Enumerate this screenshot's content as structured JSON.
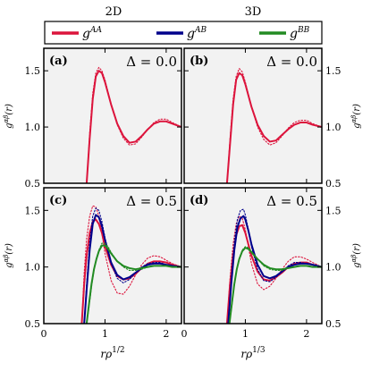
{
  "columns": [
    "2D",
    "3D"
  ],
  "legend": [
    {
      "label": "g",
      "sup": "AA",
      "color": "#dc143c"
    },
    {
      "label": "g",
      "sup": "AB",
      "color": "#00008b"
    },
    {
      "label": "g",
      "sup": "BB",
      "color": "#228b22"
    }
  ],
  "ylabel": {
    "base": "g",
    "sup": "αβ",
    "arg": "(r)"
  },
  "xlabels": [
    {
      "base": "rρ",
      "sup": "1/2"
    },
    {
      "base": "rρ",
      "sup": "1/3"
    }
  ],
  "panel_bg": "#f2f2f2",
  "chart_data": [
    {
      "type": "line",
      "panel": "(a)",
      "annotation": "Δ = 0.0",
      "xlim": [
        0,
        2.25
      ],
      "ylim": [
        0.5,
        1.7
      ],
      "xticks": [
        "0",
        "1",
        "2"
      ],
      "yticks": [
        "0.5",
        "1.0",
        "1.5"
      ],
      "grid": false,
      "series": [
        {
          "name": "gAA",
          "style": "solid",
          "x": [
            0.7,
            0.75,
            0.8,
            0.85,
            0.9,
            0.95,
            1.0,
            1.05,
            1.1,
            1.2,
            1.3,
            1.4,
            1.5,
            1.6,
            1.7,
            1.8,
            1.9,
            2.0,
            2.1,
            2.25
          ],
          "y": [
            0.5,
            0.9,
            1.25,
            1.45,
            1.5,
            1.48,
            1.4,
            1.3,
            1.2,
            1.03,
            0.92,
            0.86,
            0.87,
            0.92,
            0.98,
            1.03,
            1.05,
            1.05,
            1.03,
            1.0
          ]
        },
        {
          "name": "gAA",
          "style": "dotted",
          "x": [
            0.7,
            0.75,
            0.8,
            0.85,
            0.9,
            0.95,
            1.0,
            1.05,
            1.1,
            1.2,
            1.3,
            1.4,
            1.5,
            1.6,
            1.7,
            1.8,
            1.9,
            2.0,
            2.1,
            2.25
          ],
          "y": [
            0.5,
            0.95,
            1.3,
            1.48,
            1.53,
            1.5,
            1.42,
            1.31,
            1.2,
            1.02,
            0.9,
            0.84,
            0.85,
            0.91,
            0.98,
            1.04,
            1.07,
            1.07,
            1.04,
            1.0
          ]
        }
      ]
    },
    {
      "type": "line",
      "panel": "(b)",
      "annotation": "Δ = 0.0",
      "xlim": [
        0,
        2.25
      ],
      "ylim": [
        0.5,
        1.7
      ],
      "xticks": [
        "0",
        "1",
        "2"
      ],
      "yticks": [
        "0.5",
        "1.0",
        "1.5"
      ],
      "grid": false,
      "series": [
        {
          "name": "gAA",
          "style": "solid",
          "x": [
            0.7,
            0.75,
            0.8,
            0.85,
            0.9,
            0.95,
            1.0,
            1.05,
            1.1,
            1.2,
            1.3,
            1.4,
            1.5,
            1.6,
            1.7,
            1.8,
            1.9,
            2.0,
            2.1,
            2.25
          ],
          "y": [
            0.5,
            0.85,
            1.2,
            1.42,
            1.48,
            1.46,
            1.38,
            1.28,
            1.18,
            1.02,
            0.92,
            0.87,
            0.88,
            0.93,
            0.98,
            1.02,
            1.04,
            1.04,
            1.02,
            1.0
          ]
        },
        {
          "name": "gAA",
          "style": "dotted",
          "x": [
            0.7,
            0.75,
            0.8,
            0.85,
            0.9,
            0.95,
            1.0,
            1.05,
            1.1,
            1.2,
            1.3,
            1.4,
            1.5,
            1.6,
            1.7,
            1.8,
            1.9,
            2.0,
            2.1,
            2.25
          ],
          "y": [
            0.5,
            0.9,
            1.25,
            1.45,
            1.52,
            1.49,
            1.4,
            1.29,
            1.18,
            1.0,
            0.89,
            0.84,
            0.86,
            0.92,
            0.99,
            1.04,
            1.06,
            1.06,
            1.03,
            1.0
          ]
        }
      ]
    },
    {
      "type": "line",
      "panel": "(c)",
      "annotation": "Δ = 0.5",
      "xlim": [
        0,
        2.25
      ],
      "ylim": [
        0.5,
        1.7
      ],
      "xticks": [
        "0",
        "1",
        "2"
      ],
      "yticks": [
        "0.5",
        "1.0",
        "1.5"
      ],
      "grid": false,
      "series": [
        {
          "name": "gAA",
          "style": "solid",
          "x": [
            0.62,
            0.66,
            0.7,
            0.75,
            0.8,
            0.85,
            0.9,
            0.95,
            1.0,
            1.1,
            1.2,
            1.3,
            1.4,
            1.5,
            1.6,
            1.7,
            1.8,
            1.9,
            2.0,
            2.1,
            2.25
          ],
          "y": [
            0.5,
            0.85,
            1.1,
            1.3,
            1.4,
            1.42,
            1.38,
            1.3,
            1.18,
            1.02,
            0.92,
            0.89,
            0.9,
            0.94,
            0.99,
            1.03,
            1.05,
            1.05,
            1.04,
            1.02,
            1.0
          ]
        },
        {
          "name": "gAA",
          "style": "dotted",
          "x": [
            0.62,
            0.66,
            0.7,
            0.75,
            0.8,
            0.85,
            0.9,
            0.95,
            1.0,
            1.1,
            1.2,
            1.3,
            1.4,
            1.5,
            1.6,
            1.7,
            1.8,
            1.9,
            2.0,
            2.1,
            2.25
          ],
          "y": [
            0.5,
            0.95,
            1.25,
            1.45,
            1.54,
            1.53,
            1.45,
            1.3,
            1.12,
            0.88,
            0.77,
            0.76,
            0.83,
            0.93,
            1.02,
            1.08,
            1.1,
            1.09,
            1.06,
            1.03,
            1.0
          ]
        },
        {
          "name": "gAB",
          "style": "solid",
          "x": [
            0.66,
            0.7,
            0.75,
            0.8,
            0.85,
            0.9,
            0.95,
            1.0,
            1.1,
            1.2,
            1.3,
            1.4,
            1.5,
            1.6,
            1.7,
            1.8,
            1.9,
            2.0,
            2.1,
            2.25
          ],
          "y": [
            0.5,
            0.8,
            1.15,
            1.38,
            1.46,
            1.44,
            1.36,
            1.24,
            1.04,
            0.93,
            0.89,
            0.91,
            0.95,
            0.99,
            1.02,
            1.03,
            1.03,
            1.02,
            1.01,
            1.0
          ]
        },
        {
          "name": "gAB",
          "style": "dotted",
          "x": [
            0.66,
            0.7,
            0.75,
            0.8,
            0.85,
            0.9,
            0.95,
            1.0,
            1.1,
            1.2,
            1.3,
            1.4,
            1.5,
            1.6,
            1.7,
            1.8,
            1.9,
            2.0,
            2.1,
            2.25
          ],
          "y": [
            0.5,
            0.85,
            1.22,
            1.45,
            1.52,
            1.5,
            1.4,
            1.26,
            1.03,
            0.9,
            0.86,
            0.89,
            0.95,
            1.0,
            1.03,
            1.04,
            1.04,
            1.02,
            1.01,
            1.0
          ]
        },
        {
          "name": "gBB",
          "style": "solid",
          "x": [
            0.7,
            0.74,
            0.78,
            0.82,
            0.86,
            0.9,
            0.95,
            1.0,
            1.05,
            1.1,
            1.2,
            1.3,
            1.4,
            1.5,
            1.6,
            1.7,
            1.8,
            1.9,
            2.0,
            2.1,
            2.25
          ],
          "y": [
            0.5,
            0.68,
            0.85,
            0.98,
            1.07,
            1.14,
            1.19,
            1.19,
            1.16,
            1.12,
            1.05,
            1.01,
            0.99,
            0.98,
            0.99,
            1.0,
            1.01,
            1.01,
            1.01,
            1.0,
            1.0
          ]
        },
        {
          "name": "gBB",
          "style": "dotted",
          "x": [
            0.7,
            0.74,
            0.78,
            0.82,
            0.86,
            0.9,
            0.95,
            1.0,
            1.05,
            1.1,
            1.2,
            1.3,
            1.4,
            1.5,
            1.6,
            1.7,
            1.8,
            1.9,
            2.0,
            2.1,
            2.25
          ],
          "y": [
            0.5,
            0.65,
            0.83,
            0.97,
            1.07,
            1.15,
            1.21,
            1.21,
            1.18,
            1.13,
            1.05,
            1.0,
            0.97,
            0.97,
            0.98,
            1.0,
            1.01,
            1.01,
            1.01,
            1.0,
            1.0
          ]
        }
      ]
    },
    {
      "type": "line",
      "panel": "(d)",
      "annotation": "Δ = 0.5",
      "xlim": [
        0,
        2.25
      ],
      "ylim": [
        0.5,
        1.7
      ],
      "xticks": [
        "0",
        "1",
        "2"
      ],
      "yticks": [
        "0.5",
        "1.0",
        "1.5"
      ],
      "grid": false,
      "series": [
        {
          "name": "gAA",
          "style": "solid",
          "x": [
            0.7,
            0.75,
            0.8,
            0.85,
            0.9,
            0.95,
            1.0,
            1.05,
            1.1,
            1.2,
            1.3,
            1.4,
            1.5,
            1.6,
            1.7,
            1.8,
            1.9,
            2.0,
            2.1,
            2.25
          ],
          "y": [
            0.5,
            0.85,
            1.1,
            1.28,
            1.36,
            1.37,
            1.3,
            1.2,
            1.1,
            0.96,
            0.89,
            0.88,
            0.91,
            0.95,
            1.0,
            1.03,
            1.04,
            1.04,
            1.02,
            1.0
          ]
        },
        {
          "name": "gAA",
          "style": "dotted",
          "x": [
            0.7,
            0.75,
            0.8,
            0.85,
            0.9,
            0.95,
            1.0,
            1.05,
            1.1,
            1.2,
            1.3,
            1.4,
            1.5,
            1.6,
            1.7,
            1.8,
            1.9,
            2.0,
            2.1,
            2.25
          ],
          "y": [
            0.5,
            0.9,
            1.2,
            1.38,
            1.45,
            1.43,
            1.33,
            1.18,
            1.03,
            0.85,
            0.8,
            0.83,
            0.9,
            0.98,
            1.05,
            1.09,
            1.09,
            1.07,
            1.04,
            1.0
          ]
        },
        {
          "name": "gAB",
          "style": "solid",
          "x": [
            0.72,
            0.77,
            0.82,
            0.87,
            0.92,
            0.97,
            1.0,
            1.05,
            1.1,
            1.2,
            1.3,
            1.4,
            1.5,
            1.6,
            1.7,
            1.8,
            1.9,
            2.0,
            2.1,
            2.25
          ],
          "y": [
            0.5,
            0.85,
            1.15,
            1.35,
            1.43,
            1.45,
            1.42,
            1.32,
            1.2,
            1.02,
            0.92,
            0.9,
            0.92,
            0.96,
            1.0,
            1.02,
            1.03,
            1.03,
            1.02,
            1.0
          ]
        },
        {
          "name": "gAB",
          "style": "dotted",
          "x": [
            0.72,
            0.77,
            0.82,
            0.87,
            0.92,
            0.97,
            1.0,
            1.05,
            1.1,
            1.2,
            1.3,
            1.4,
            1.5,
            1.6,
            1.7,
            1.8,
            1.9,
            2.0,
            2.1,
            2.25
          ],
          "y": [
            0.5,
            0.9,
            1.22,
            1.42,
            1.5,
            1.51,
            1.46,
            1.33,
            1.18,
            0.98,
            0.88,
            0.87,
            0.91,
            0.96,
            1.01,
            1.04,
            1.04,
            1.03,
            1.02,
            1.0
          ]
        },
        {
          "name": "gBB",
          "style": "solid",
          "x": [
            0.74,
            0.78,
            0.82,
            0.86,
            0.9,
            0.95,
            1.0,
            1.05,
            1.1,
            1.2,
            1.3,
            1.4,
            1.5,
            1.6,
            1.7,
            1.8,
            1.9,
            2.0,
            2.1,
            2.25
          ],
          "y": [
            0.5,
            0.68,
            0.85,
            0.98,
            1.07,
            1.14,
            1.17,
            1.16,
            1.13,
            1.07,
            1.02,
            0.99,
            0.98,
            0.98,
            0.99,
            1.0,
            1.01,
            1.01,
            1.0,
            1.0
          ]
        },
        {
          "name": "gBB",
          "style": "dotted",
          "x": [
            0.74,
            0.78,
            0.82,
            0.86,
            0.9,
            0.95,
            1.0,
            1.05,
            1.1,
            1.2,
            1.3,
            1.4,
            1.5,
            1.6,
            1.7,
            1.8,
            1.9,
            2.0,
            2.1,
            2.25
          ],
          "y": [
            0.5,
            0.66,
            0.84,
            0.97,
            1.07,
            1.15,
            1.18,
            1.17,
            1.14,
            1.07,
            1.01,
            0.98,
            0.97,
            0.97,
            0.99,
            1.0,
            1.01,
            1.01,
            1.0,
            1.0
          ]
        }
      ]
    }
  ]
}
